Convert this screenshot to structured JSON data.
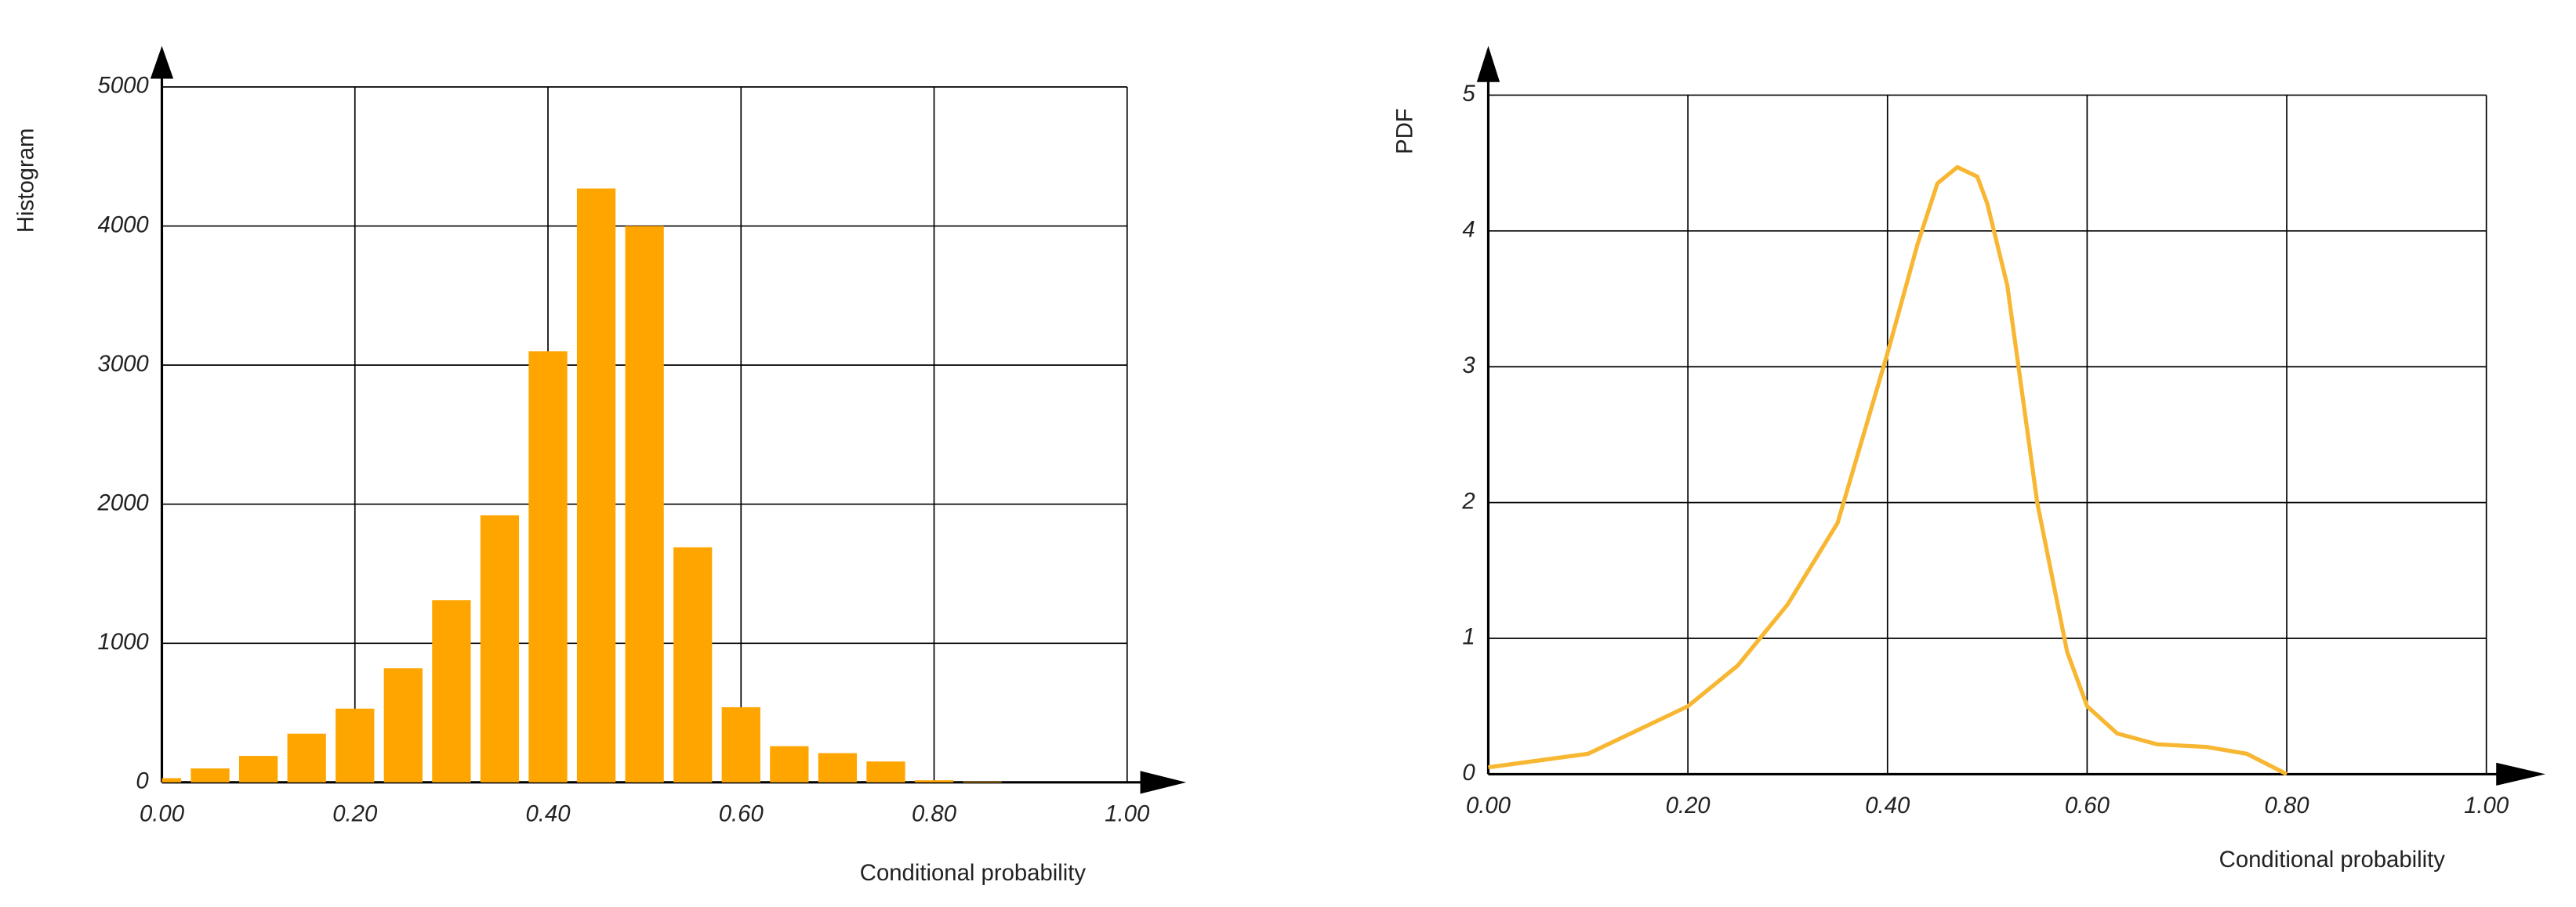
{
  "chart_data": [
    {
      "type": "histogram",
      "ylabel": "Histogram",
      "xlabel": "Conditional probability",
      "color": "#ffa500",
      "grid": true,
      "bins": [
        -0.025,
        0.025,
        0.075,
        0.125,
        0.175,
        0.225,
        0.275,
        0.325,
        0.375,
        0.425,
        0.475,
        0.525,
        0.575,
        0.625,
        0.675,
        0.725,
        0.775,
        0.825,
        0.875
      ],
      "values": [
        30,
        100,
        190,
        350,
        530,
        820,
        1310,
        1920,
        3100,
        4270,
        4000,
        1690,
        540,
        260,
        210,
        150,
        15,
        5
      ],
      "xlim": [
        0,
        1
      ],
      "ylim": [
        0,
        5000
      ],
      "xticks": [
        {
          "value": 0,
          "label": "0.00"
        },
        {
          "value": 0.2,
          "label": "0.20"
        },
        {
          "value": 0.4,
          "label": "0.40"
        },
        {
          "value": 0.6,
          "label": "0.60"
        },
        {
          "value": 0.8,
          "label": "0.80"
        },
        {
          "value": 1,
          "label": "1.00"
        }
      ],
      "yticks": [
        0,
        1000,
        2000,
        3000,
        4000,
        5000
      ]
    },
    {
      "type": "line",
      "ylabel": "PDF",
      "xlabel": "Conditional probability",
      "color": "#f7b733",
      "grid": true,
      "x": [
        0,
        0.1,
        0.2,
        0.25,
        0.3,
        0.35,
        0.4,
        0.43,
        0.45,
        0.47,
        0.49,
        0.5,
        0.52,
        0.55,
        0.58,
        0.6,
        0.63,
        0.67,
        0.72,
        0.76,
        0.8
      ],
      "values": [
        0.05,
        0.15,
        0.5,
        0.8,
        1.25,
        1.85,
        3.1,
        3.9,
        4.35,
        4.47,
        4.4,
        4.2,
        3.6,
        2.0,
        0.9,
        0.5,
        0.3,
        0.22,
        0.2,
        0.15,
        0
      ],
      "xlim": [
        0,
        1
      ],
      "ylim": [
        0,
        5
      ],
      "xticks": [
        {
          "value": 0,
          "label": "0.00"
        },
        {
          "value": 0.2,
          "label": "0.20"
        },
        {
          "value": 0.4,
          "label": "0.40"
        },
        {
          "value": 0.6,
          "label": "0.60"
        },
        {
          "value": 0.8,
          "label": "0.80"
        },
        {
          "value": 1,
          "label": "1.00"
        }
      ],
      "yticks": [
        0,
        1,
        2,
        3,
        4,
        5
      ]
    }
  ]
}
